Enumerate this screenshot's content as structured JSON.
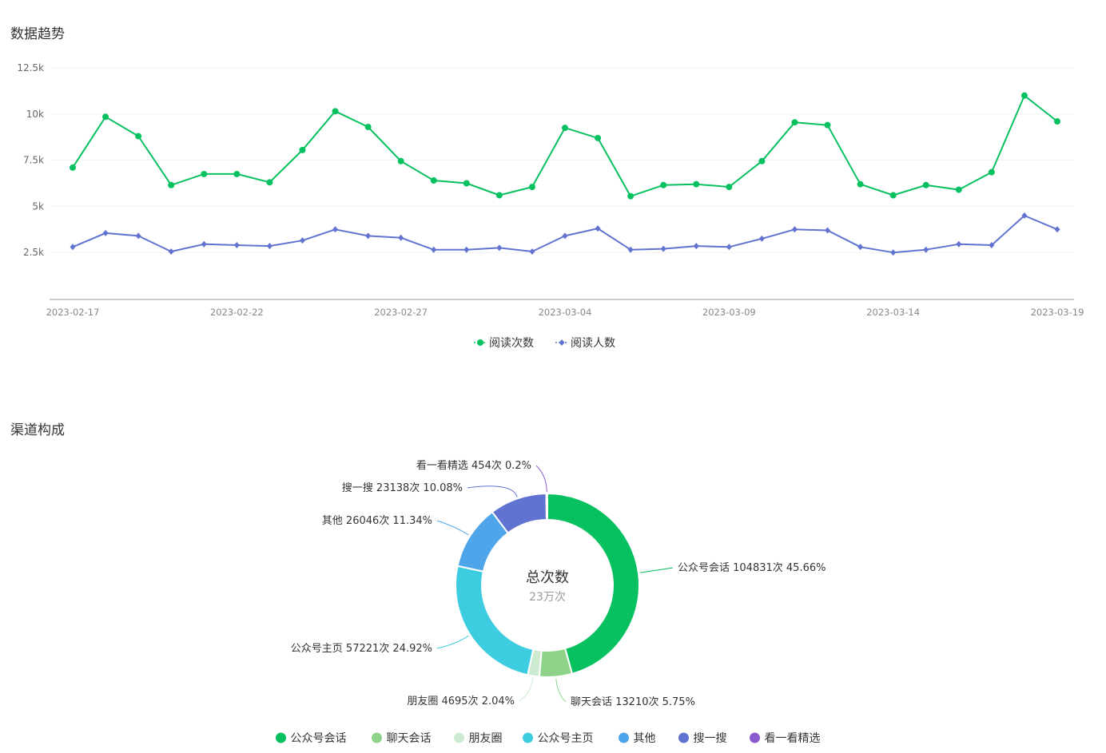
{
  "sections": {
    "trend_title": "数据趋势",
    "channel_title": "渠道构成"
  },
  "chart_data": [
    {
      "type": "line",
      "x": [
        "2023-02-17",
        "2023-02-18",
        "2023-02-19",
        "2023-02-20",
        "2023-02-21",
        "2023-02-22",
        "2023-02-23",
        "2023-02-24",
        "2023-02-25",
        "2023-02-26",
        "2023-02-27",
        "2023-02-28",
        "2023-03-01",
        "2023-03-02",
        "2023-03-03",
        "2023-03-04",
        "2023-03-05",
        "2023-03-06",
        "2023-03-07",
        "2023-03-08",
        "2023-03-09",
        "2023-03-10",
        "2023-03-11",
        "2023-03-12",
        "2023-03-13",
        "2023-03-14",
        "2023-03-15",
        "2023-03-16",
        "2023-03-17",
        "2023-03-18",
        "2023-03-19"
      ],
      "x_tick_labels": [
        "2023-02-17",
        "2023-02-22",
        "2023-02-27",
        "2023-03-04",
        "2023-03-09",
        "2023-03-14",
        "2023-03-19"
      ],
      "y_tick_labels": [
        "2.5k",
        "5k",
        "7.5k",
        "10k",
        "12.5k"
      ],
      "y_ticks": [
        2500,
        5000,
        7500,
        10000,
        12500
      ],
      "ylim": [
        0,
        12500
      ],
      "grid": true,
      "legend_position": "bottom-center",
      "series": [
        {
          "name": "阅读次数",
          "color": "#07c160",
          "marker": "circle",
          "values": [
            7100,
            9850,
            8800,
            6150,
            6750,
            6750,
            6300,
            8050,
            10150,
            9300,
            7450,
            6400,
            6250,
            5600,
            6050,
            9250,
            8700,
            5550,
            6150,
            6200,
            6050,
            7450,
            9550,
            9400,
            6200,
            5600,
            6150,
            5900,
            6850,
            11000,
            9600
          ]
        },
        {
          "name": "阅读人数",
          "color": "#6173d0",
          "marker": "diamond",
          "values": [
            2800,
            3550,
            3400,
            2550,
            2950,
            2900,
            2850,
            3150,
            3750,
            3400,
            3300,
            2650,
            2650,
            2750,
            2550,
            3400,
            3800,
            2650,
            2700,
            2850,
            2800,
            3250,
            3750,
            3700,
            2800,
            2500,
            2650,
            2950,
            2900,
            4500,
            3750
          ]
        }
      ]
    },
    {
      "type": "pie",
      "donut": true,
      "center_title": "总次数",
      "center_value": "23万次",
      "legend_position": "bottom-center",
      "slices": [
        {
          "name": "公众号会话",
          "value": 104831,
          "percent": 45.66,
          "color": "#07c160",
          "label": "公众号会话 104831次 45.66%"
        },
        {
          "name": "聊天会话",
          "value": 13210,
          "percent": 5.75,
          "color": "#8ed389",
          "label": "聊天会话 13210次 5.75%"
        },
        {
          "name": "朋友圈",
          "value": 4695,
          "percent": 2.04,
          "color": "#cdebd0",
          "label": "朋友圈 4695次 2.04%"
        },
        {
          "name": "公众号主页",
          "value": 57221,
          "percent": 24.92,
          "color": "#3ecde0",
          "label": "公众号主页 57221次 24.92%"
        },
        {
          "name": "其他",
          "value": 26046,
          "percent": 11.34,
          "color": "#4ea5ea",
          "label": "其他 26046次 11.34%"
        },
        {
          "name": "搜一搜",
          "value": 23138,
          "percent": 10.08,
          "color": "#6173d0",
          "label": "搜一搜 23138次 10.08%"
        },
        {
          "name": "看一看精选",
          "value": 454,
          "percent": 0.2,
          "color": "#8a5bcf",
          "label": "看一看精选 454次 0.2%"
        }
      ]
    }
  ]
}
